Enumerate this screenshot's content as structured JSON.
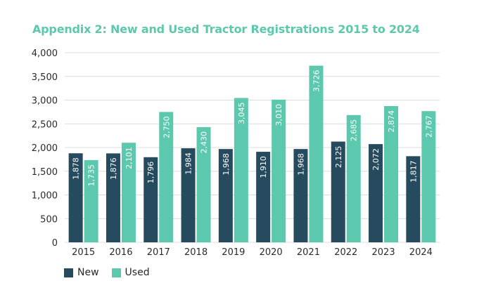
{
  "chart_data": {
    "type": "bar",
    "title": "Appendix 2: New and Used Tractor Registrations 2015 to 2024",
    "xlabel": "",
    "ylabel": "",
    "ylim": [
      0,
      4000
    ],
    "yticks": [
      0,
      500,
      1000,
      1500,
      2000,
      2500,
      3000,
      3500,
      4000
    ],
    "ytick_labels": [
      "0",
      "500",
      "1,000",
      "1,500",
      "2,000",
      "2,500",
      "3,000",
      "3,500",
      "4,000"
    ],
    "grid": true,
    "legend_position": "bottom-left",
    "categories": [
      "2015",
      "2016",
      "2017",
      "2018",
      "2019",
      "2020",
      "2021",
      "2022",
      "2023",
      "2024"
    ],
    "series": [
      {
        "name": "New",
        "color": "#264a5e",
        "values": [
          1878,
          1876,
          1796,
          1984,
          1968,
          1910,
          1968,
          2125,
          2072,
          1817
        ],
        "labels": [
          "1,878",
          "1,876",
          "1,796",
          "1,984",
          "1,968",
          "1,910",
          "1,968",
          "2,125",
          "2,072",
          "1,817"
        ]
      },
      {
        "name": "Used",
        "color": "#5cc8ad",
        "values": [
          1735,
          2101,
          2750,
          2430,
          3045,
          3010,
          3726,
          2685,
          2874,
          2767
        ],
        "labels": [
          "1,735",
          "2,101",
          "2,750",
          "2,430",
          "3,045",
          "3,010",
          "3,726",
          "2,685",
          "2,874",
          "2,767"
        ]
      }
    ]
  }
}
